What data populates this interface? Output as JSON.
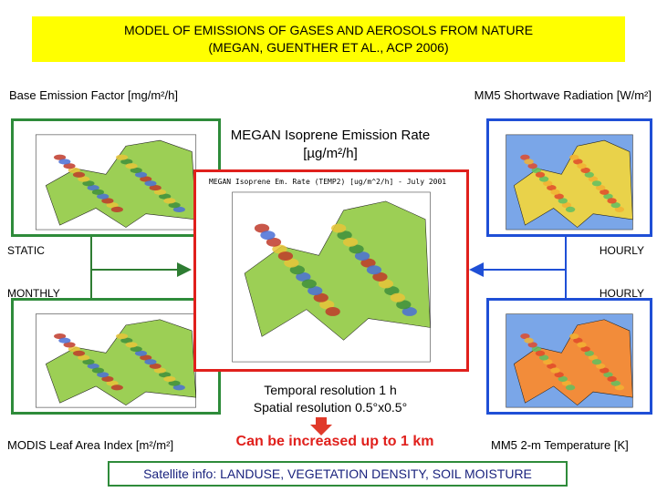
{
  "header": {
    "title_line1": "MODEL OF EMISSIONS OF GASES AND AEROSOLS FROM NATURE",
    "title_line2": "(MEGAN, GUENTHER ET AL., ACP 2006)"
  },
  "inputs": {
    "top_left": "Base Emission Factor [mg/m²/h]",
    "top_right": "MM5 Shortwave Radiation [W/m²]",
    "bottom_left": "MODIS Leaf Area Index [m²/m²]",
    "bottom_right": "MM5 2-m Temperature [K]"
  },
  "output": {
    "title_line1": "MEGAN Isoprene Emission Rate",
    "title_line2": "[µg/m²/h]",
    "map_title": "MEGAN Isoprene Em. Rate (TEMP2) [ug/m^2/h] - July 2001"
  },
  "frequency": {
    "top_left": "STATIC",
    "top_right": "HOURLY",
    "bottom_left": "MONTHLY",
    "bottom_right": "HOURLY"
  },
  "resolution": {
    "temporal": "Temporal resolution 1 h",
    "spatial": "Spatial resolution 0.5°x0.5°",
    "note": "Can be increased up to 1 km"
  },
  "footer": {
    "satellite": "Satellite info: LANDUSE, VEGETATION DENSITY, SOIL MOISTURE"
  }
}
